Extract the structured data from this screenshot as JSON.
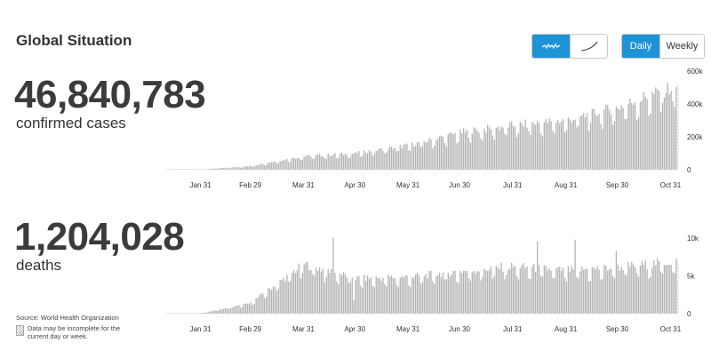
{
  "title": "Global Situation",
  "toggles": {
    "chart_mode": [
      {
        "icon": "wave-line-icon",
        "active": true
      },
      {
        "icon": "curve-line-icon",
        "active": false
      }
    ],
    "period": [
      {
        "label": "Daily",
        "active": true
      },
      {
        "label": "Weekly",
        "active": false
      }
    ]
  },
  "colors": {
    "accent": "#1f93d6",
    "bar": "#b3b3b3"
  },
  "cases": {
    "total": "46,840,783",
    "label": "confirmed cases"
  },
  "deaths": {
    "total": "1,204,028",
    "label": "deaths"
  },
  "source": "Source: World Health Organization",
  "note": "Data may be incomplete for the current day or week.",
  "chart_data": [
    {
      "type": "bar",
      "series_id": "cases",
      "x_tick_labels": [
        "Jan 31",
        "Feb 29",
        "Mar 31",
        "Apr 30",
        "May 31",
        "Jun 30",
        "Jul 31",
        "Aug 31",
        "Sep 30",
        "Oct 31"
      ],
      "y_tick_labels": [
        "0",
        "200k",
        "400k",
        "600k"
      ],
      "ylim": [
        0,
        600000
      ],
      "start_date": "2020-01-11",
      "monthly_daily_avg": {
        "Jan": 200,
        "Feb": 2000,
        "Mar": 22000,
        "Apr": 78000,
        "May": 95000,
        "Jun": 140000,
        "Jul": 215000,
        "Aug": 255000,
        "Sep": 285000,
        "Oct": 360000,
        "Nov": 470000
      },
      "grid": false,
      "legend": "none"
    },
    {
      "type": "bar",
      "series_id": "deaths",
      "x_tick_labels": [
        "Jan 31",
        "Feb 29",
        "Mar 31",
        "Apr 30",
        "May 31",
        "Jun 30",
        "Jul 31",
        "Aug 31",
        "Sep 30",
        "Oct 31"
      ],
      "y_tick_labels": [
        "0",
        "5k",
        "10k"
      ],
      "ylim": [
        0,
        10000
      ],
      "start_date": "2020-01-11",
      "monthly_daily_avg": {
        "Jan": 10,
        "Feb": 60,
        "Mar": 1400,
        "Apr": 6200,
        "May": 4400,
        "Jun": 4600,
        "Jul": 5300,
        "Aug": 5900,
        "Sep": 5400,
        "Oct": 5800,
        "Nov": 6500
      },
      "peaks": [
        {
          "date": "2020-04-17",
          "value": 12300
        },
        {
          "date": "2020-08-14",
          "value": 9600
        },
        {
          "date": "2020-09-05",
          "value": 9800
        },
        {
          "date": "2020-09-29",
          "value": 8300
        }
      ],
      "grid": false,
      "legend": "none"
    }
  ]
}
